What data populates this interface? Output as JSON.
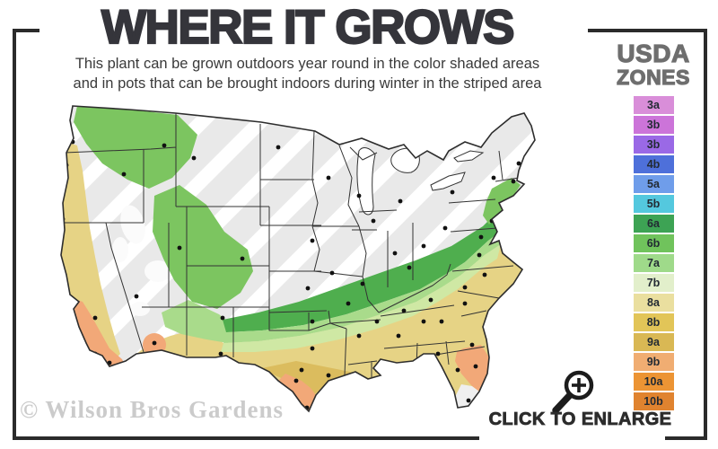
{
  "header": {
    "title": "WHERE IT GROWS",
    "subtitle_line1": "This plant can be grown outdoors year round in the color shaded areas",
    "subtitle_line2": "and in pots that can be brought indoors during winter in the striped area"
  },
  "legend": {
    "title_line1": "USDA",
    "title_line2": "ZONES",
    "zones": [
      {
        "label": "3a",
        "color": "#d98ed9"
      },
      {
        "label": "3b",
        "color": "#cc74d9"
      },
      {
        "label": "3b",
        "color": "#9a69e6"
      },
      {
        "label": "4b",
        "color": "#4e70da"
      },
      {
        "label": "5a",
        "color": "#6f9dea"
      },
      {
        "label": "5b",
        "color": "#54c8de"
      },
      {
        "label": "6a",
        "color": "#3da354"
      },
      {
        "label": "6b",
        "color": "#70c35c"
      },
      {
        "label": "7a",
        "color": "#9fda8a"
      },
      {
        "label": "7b",
        "color": "#e2efcb"
      },
      {
        "label": "8a",
        "color": "#eadf9f"
      },
      {
        "label": "8b",
        "color": "#e2c558"
      },
      {
        "label": "9a",
        "color": "#d9b854"
      },
      {
        "label": "9b",
        "color": "#f0ad72"
      },
      {
        "label": "10a",
        "color": "#ec9434"
      },
      {
        "label": "10b",
        "color": "#e0832f"
      }
    ]
  },
  "map": {
    "palette": {
      "gray_base": "#e9e9e9",
      "stripe": "#ffffff",
      "green_dark": "#4fae4e",
      "green_mid": "#7cc560",
      "green_light": "#a9db8b",
      "green_pale": "#cfe8a4",
      "yellow": "#e6d385",
      "gold": "#dbbc5e",
      "salmon": "#f2a878",
      "white_patch": "#fbfbfb",
      "south_fl": "#efefef",
      "outline": "#2d2d2d",
      "state_line": "#333333",
      "lake": "#ffffff",
      "dot": "#111111"
    },
    "city_dots": [
      [
        33,
        52
      ],
      [
        26,
        78
      ],
      [
        90,
        88
      ],
      [
        135,
        56
      ],
      [
        168,
        70
      ],
      [
        22,
        138
      ],
      [
        30,
        226
      ],
      [
        58,
        248
      ],
      [
        58,
        288
      ],
      [
        74,
        298
      ],
      [
        104,
        224
      ],
      [
        124,
        276
      ],
      [
        152,
        170
      ],
      [
        200,
        248
      ],
      [
        198,
        288
      ],
      [
        222,
        182
      ],
      [
        262,
        58
      ],
      [
        318,
        92
      ],
      [
        300,
        162
      ],
      [
        322,
        198
      ],
      [
        295,
        215
      ],
      [
        300,
        252
      ],
      [
        300,
        282
      ],
      [
        288,
        306
      ],
      [
        282,
        318
      ],
      [
        318,
        312
      ],
      [
        294,
        348
      ],
      [
        352,
        112
      ],
      [
        368,
        140
      ],
      [
        398,
        118
      ],
      [
        392,
        176
      ],
      [
        424,
        168
      ],
      [
        408,
        192
      ],
      [
        356,
        210
      ],
      [
        340,
        232
      ],
      [
        352,
        268
      ],
      [
        372,
        252
      ],
      [
        402,
        240
      ],
      [
        432,
        228
      ],
      [
        470,
        214
      ],
      [
        492,
        200
      ],
      [
        486,
        178
      ],
      [
        488,
        158
      ],
      [
        448,
        148
      ],
      [
        500,
        140
      ],
      [
        512,
        122
      ],
      [
        502,
        92
      ],
      [
        524,
        96
      ],
      [
        530,
        76
      ],
      [
        456,
        108
      ],
      [
        444,
        252
      ],
      [
        424,
        252
      ],
      [
        396,
        268
      ],
      [
        372,
        306
      ],
      [
        440,
        288
      ],
      [
        478,
        278
      ],
      [
        482,
        302
      ],
      [
        462,
        306
      ],
      [
        474,
        340
      ],
      [
        470,
        232
      ]
    ]
  },
  "footer": {
    "watermark": "© Wilson Bros Gardens",
    "enlarge_label": "CLICK TO ENLARGE"
  }
}
